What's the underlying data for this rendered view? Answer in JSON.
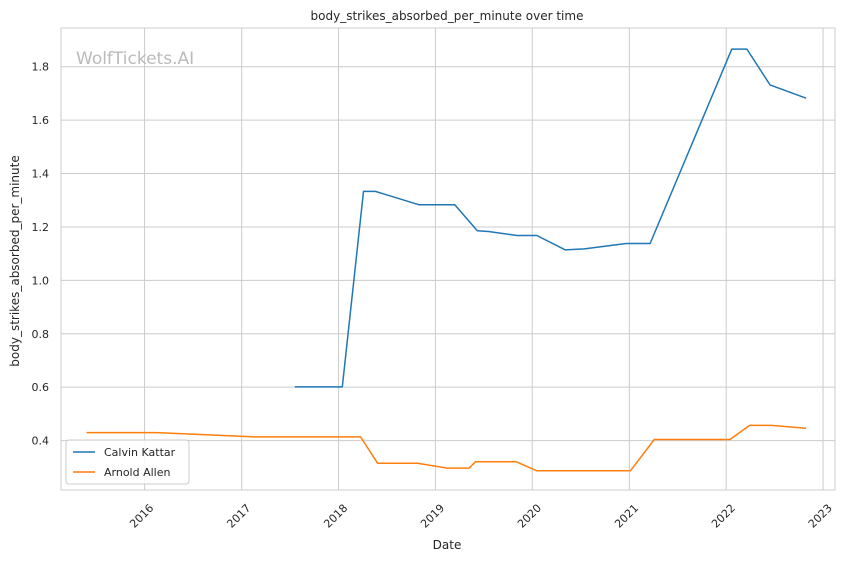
{
  "chart_data": {
    "type": "line",
    "title": "body_strikes_absorbed_per_minute over time",
    "xlabel": "Date",
    "ylabel": "body_strikes_absorbed_per_minute",
    "watermark": "WolfTickets.AI",
    "x_range": [
      "2015-02-20",
      "2023-02-15"
    ],
    "ylim": [
      0.215,
      1.945
    ],
    "x_ticks": [
      {
        "label": "2016",
        "date": "2016-01-01"
      },
      {
        "label": "2017",
        "date": "2017-01-01"
      },
      {
        "label": "2018",
        "date": "2018-01-01"
      },
      {
        "label": "2019",
        "date": "2019-01-01"
      },
      {
        "label": "2020",
        "date": "2020-01-01"
      },
      {
        "label": "2021",
        "date": "2021-01-01"
      },
      {
        "label": "2022",
        "date": "2022-01-01"
      },
      {
        "label": "2023",
        "date": "2023-01-01"
      }
    ],
    "y_ticks": [
      0.4,
      0.6,
      0.8,
      1.0,
      1.2,
      1.4,
      1.6,
      1.8
    ],
    "grid": true,
    "legend_position": "bottom-left",
    "series": [
      {
        "name": "Calvin Kattar",
        "color": "#1f77b4",
        "points": [
          {
            "x": "2017-07-20",
            "y": 0.601
          },
          {
            "x": "2018-01-15",
            "y": 0.601
          },
          {
            "x": "2018-04-05",
            "y": 1.333
          },
          {
            "x": "2018-05-20",
            "y": 1.333
          },
          {
            "x": "2018-11-01",
            "y": 1.283
          },
          {
            "x": "2019-03-15",
            "y": 1.283
          },
          {
            "x": "2019-06-08",
            "y": 1.186
          },
          {
            "x": "2019-07-20",
            "y": 1.183
          },
          {
            "x": "2019-11-05",
            "y": 1.168
          },
          {
            "x": "2020-01-18",
            "y": 1.168
          },
          {
            "x": "2020-05-05",
            "y": 1.114
          },
          {
            "x": "2020-07-15",
            "y": 1.118
          },
          {
            "x": "2020-12-20",
            "y": 1.138
          },
          {
            "x": "2021-03-20",
            "y": 1.138
          },
          {
            "x": "2022-01-22",
            "y": 1.866
          },
          {
            "x": "2022-03-20",
            "y": 1.866
          },
          {
            "x": "2022-06-15",
            "y": 1.732
          },
          {
            "x": "2022-10-29",
            "y": 1.682
          }
        ]
      },
      {
        "name": "Arnold Allen",
        "color": "#ff7f0e",
        "points": [
          {
            "x": "2015-05-27",
            "y": 0.43
          },
          {
            "x": "2016-02-15",
            "y": 0.43
          },
          {
            "x": "2017-02-25",
            "y": 0.414
          },
          {
            "x": "2018-03-25",
            "y": 0.414
          },
          {
            "x": "2018-05-28",
            "y": 0.315
          },
          {
            "x": "2018-10-25",
            "y": 0.315
          },
          {
            "x": "2019-02-15",
            "y": 0.297
          },
          {
            "x": "2019-05-08",
            "y": 0.297
          },
          {
            "x": "2019-06-01",
            "y": 0.321
          },
          {
            "x": "2019-11-01",
            "y": 0.321
          },
          {
            "x": "2020-01-18",
            "y": 0.287
          },
          {
            "x": "2020-12-15",
            "y": 0.287
          },
          {
            "x": "2021-01-05",
            "y": 0.287
          },
          {
            "x": "2021-04-05",
            "y": 0.404
          },
          {
            "x": "2022-01-15",
            "y": 0.404
          },
          {
            "x": "2022-03-30",
            "y": 0.457
          },
          {
            "x": "2022-06-20",
            "y": 0.457
          },
          {
            "x": "2022-10-29",
            "y": 0.446
          }
        ]
      }
    ]
  }
}
